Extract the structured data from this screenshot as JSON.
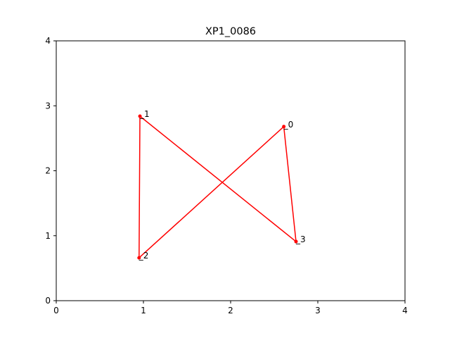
{
  "chart_data": {
    "type": "line",
    "title": "XP1_0086",
    "xlabel": "",
    "ylabel": "",
    "xlim": [
      0,
      4
    ],
    "ylim": [
      0,
      4
    ],
    "xticks": [
      "0",
      "1",
      "2",
      "3",
      "4"
    ],
    "yticks": [
      "0",
      "1",
      "2",
      "3",
      "4"
    ],
    "grid": false,
    "series": [
      {
        "color": "#ff0000",
        "points": [
          {
            "label": "0",
            "x": 2.61,
            "y": 2.68
          },
          {
            "label": "3",
            "x": 2.75,
            "y": 0.91
          },
          {
            "label": "1",
            "x": 0.96,
            "y": 2.84
          },
          {
            "label": "2",
            "x": 0.95,
            "y": 0.66
          },
          {
            "label": "0",
            "x": 2.61,
            "y": 2.68
          }
        ]
      }
    ]
  }
}
